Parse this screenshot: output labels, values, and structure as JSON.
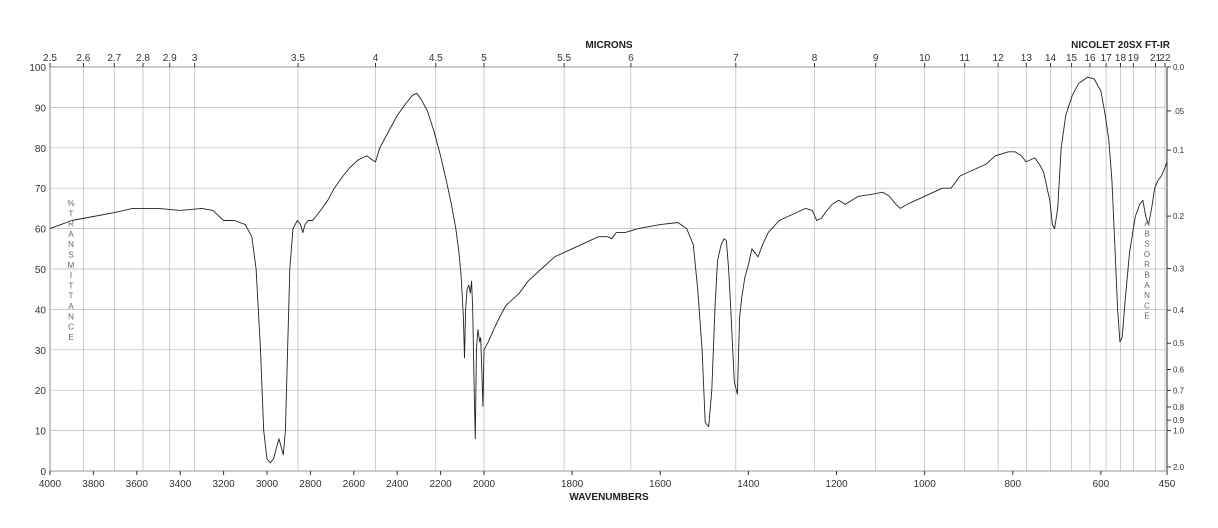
{
  "header": {
    "top_axis_label": "MICRONS",
    "instrument": "NICOLET 20SX FT-IR"
  },
  "chart_data": {
    "type": "line",
    "title": "",
    "xlabel": "WAVENUMBERS",
    "x2label": "MICRONS",
    "ylabel": "%TRANSMITTANCE",
    "y2label": "ABSORBANCE",
    "xlim": [
      4000,
      450
    ],
    "ylim": [
      0,
      100
    ],
    "x_axis_note": "wavenumber axis: linear 4000-2000 and 2000-450 with a scale change at 2000",
    "grid": true,
    "x_ticks": [
      "4000",
      "3800",
      "3600",
      "3400",
      "3200",
      "3000",
      "2800",
      "2600",
      "2400",
      "2200",
      "2000",
      "1800",
      "1600",
      "1400",
      "1200",
      "1000",
      "800",
      "600",
      "450"
    ],
    "y_ticks": [
      "0",
      "10",
      "20",
      "30",
      "40",
      "50",
      "60",
      "70",
      "80",
      "90",
      "100"
    ],
    "micron_ticks": [
      "2.5",
      "2.6",
      "2.7",
      "2.8",
      "2.9",
      "3",
      "3.5",
      "4",
      "4.5",
      "5",
      "5.5",
      "6",
      "7",
      "8",
      "9",
      "10",
      "11",
      "12",
      "13",
      "14",
      "15",
      "16",
      "17",
      "18",
      "19",
      "21",
      "22"
    ],
    "absorbance_ticks": [
      "0.0",
      ".05",
      "0.1",
      "0.2",
      "0.3",
      "0.4",
      "0.5",
      "0.6",
      "0.7",
      "0.8",
      "0.9",
      "1.0",
      "2.0"
    ],
    "series": [
      {
        "values": [
          [
            4000,
            60
          ],
          [
            3950,
            61
          ],
          [
            3900,
            62
          ],
          [
            3800,
            63
          ],
          [
            3700,
            64
          ],
          [
            3620,
            65
          ],
          [
            3500,
            65
          ],
          [
            3400,
            64.5
          ],
          [
            3300,
            65
          ],
          [
            3250,
            64.5
          ],
          [
            3200,
            62
          ],
          [
            3150,
            62
          ],
          [
            3100,
            61
          ],
          [
            3070,
            58
          ],
          [
            3050,
            50
          ],
          [
            3030,
            30
          ],
          [
            3015,
            10
          ],
          [
            3000,
            3
          ],
          [
            2985,
            2
          ],
          [
            2970,
            3
          ],
          [
            2955,
            6
          ],
          [
            2945,
            8
          ],
          [
            2935,
            6
          ],
          [
            2925,
            4
          ],
          [
            2915,
            10
          ],
          [
            2905,
            30
          ],
          [
            2895,
            50
          ],
          [
            2880,
            60
          ],
          [
            2860,
            62
          ],
          [
            2845,
            61
          ],
          [
            2835,
            59
          ],
          [
            2825,
            61
          ],
          [
            2810,
            62
          ],
          [
            2790,
            62
          ],
          [
            2760,
            64
          ],
          [
            2720,
            67
          ],
          [
            2690,
            70
          ],
          [
            2650,
            73
          ],
          [
            2620,
            75
          ],
          [
            2580,
            77
          ],
          [
            2540,
            78
          ],
          [
            2515,
            77
          ],
          [
            2500,
            76.5
          ],
          [
            2480,
            80
          ],
          [
            2440,
            84
          ],
          [
            2400,
            88
          ],
          [
            2360,
            91
          ],
          [
            2330,
            93
          ],
          [
            2310,
            93.5
          ],
          [
            2290,
            92
          ],
          [
            2260,
            89
          ],
          [
            2230,
            84
          ],
          [
            2200,
            78
          ],
          [
            2170,
            71
          ],
          [
            2150,
            66
          ],
          [
            2130,
            60
          ],
          [
            2115,
            54
          ],
          [
            2105,
            48
          ],
          [
            2095,
            38
          ],
          [
            2090,
            28
          ],
          [
            2085,
            40
          ],
          [
            2078,
            45
          ],
          [
            2070,
            46
          ],
          [
            2063,
            44
          ],
          [
            2057,
            47
          ],
          [
            2052,
            40
          ],
          [
            2045,
            20
          ],
          [
            2040,
            8
          ],
          [
            2035,
            30
          ],
          [
            2028,
            35
          ],
          [
            2020,
            32
          ],
          [
            2015,
            33
          ],
          [
            2010,
            25
          ],
          [
            2005,
            16
          ],
          [
            2000,
            30
          ],
          [
            1990,
            32
          ],
          [
            1978,
            35
          ],
          [
            1965,
            38
          ],
          [
            1950,
            41
          ],
          [
            1920,
            44
          ],
          [
            1900,
            47
          ],
          [
            1870,
            50
          ],
          [
            1840,
            53
          ],
          [
            1800,
            55
          ],
          [
            1780,
            56
          ],
          [
            1760,
            57
          ],
          [
            1740,
            58
          ],
          [
            1720,
            58
          ],
          [
            1710,
            57.5
          ],
          [
            1700,
            59
          ],
          [
            1680,
            59
          ],
          [
            1650,
            60
          ],
          [
            1600,
            61
          ],
          [
            1560,
            61.5
          ],
          [
            1540,
            60
          ],
          [
            1525,
            56
          ],
          [
            1515,
            45
          ],
          [
            1505,
            30
          ],
          [
            1498,
            12
          ],
          [
            1490,
            11
          ],
          [
            1483,
            20
          ],
          [
            1476,
            40
          ],
          [
            1470,
            52
          ],
          [
            1462,
            56
          ],
          [
            1455,
            57.5
          ],
          [
            1450,
            57
          ],
          [
            1445,
            50
          ],
          [
            1440,
            40
          ],
          [
            1432,
            22
          ],
          [
            1425,
            19
          ],
          [
            1420,
            38
          ],
          [
            1415,
            43
          ],
          [
            1408,
            48
          ],
          [
            1400,
            51
          ],
          [
            1392,
            55
          ],
          [
            1385,
            54
          ],
          [
            1378,
            53
          ],
          [
            1368,
            56
          ],
          [
            1355,
            59
          ],
          [
            1330,
            62
          ],
          [
            1310,
            63
          ],
          [
            1290,
            64
          ],
          [
            1270,
            65
          ],
          [
            1255,
            64.5
          ],
          [
            1245,
            62
          ],
          [
            1235,
            62.5
          ],
          [
            1225,
            64
          ],
          [
            1210,
            66
          ],
          [
            1195,
            67
          ],
          [
            1180,
            66
          ],
          [
            1165,
            67
          ],
          [
            1150,
            68
          ],
          [
            1120,
            68.5
          ],
          [
            1095,
            69
          ],
          [
            1080,
            68
          ],
          [
            1065,
            66
          ],
          [
            1055,
            65
          ],
          [
            1040,
            66
          ],
          [
            1020,
            67
          ],
          [
            1000,
            68
          ],
          [
            980,
            69
          ],
          [
            960,
            70
          ],
          [
            940,
            70
          ],
          [
            920,
            73
          ],
          [
            900,
            74
          ],
          [
            880,
            75
          ],
          [
            860,
            76
          ],
          [
            840,
            78
          ],
          [
            810,
            79
          ],
          [
            795,
            79
          ],
          [
            780,
            78
          ],
          [
            770,
            76.5
          ],
          [
            760,
            77
          ],
          [
            750,
            77.5
          ],
          [
            740,
            76
          ],
          [
            730,
            74
          ],
          [
            722,
            70
          ],
          [
            716,
            67
          ],
          [
            710,
            61
          ],
          [
            705,
            60
          ],
          [
            698,
            65
          ],
          [
            690,
            80
          ],
          [
            680,
            88
          ],
          [
            665,
            93
          ],
          [
            650,
            96
          ],
          [
            630,
            97.5
          ],
          [
            615,
            97
          ],
          [
            600,
            94
          ],
          [
            590,
            88
          ],
          [
            582,
            82
          ],
          [
            575,
            72
          ],
          [
            568,
            55
          ],
          [
            562,
            40
          ],
          [
            557,
            32
          ],
          [
            552,
            33
          ],
          [
            545,
            42
          ],
          [
            535,
            54
          ],
          [
            522,
            63
          ],
          [
            512,
            66
          ],
          [
            505,
            67
          ],
          [
            498,
            63
          ],
          [
            492,
            61
          ],
          [
            485,
            65
          ],
          [
            478,
            70
          ],
          [
            470,
            72
          ],
          [
            463,
            73
          ],
          [
            455,
            75
          ],
          [
            450,
            76.5
          ]
        ]
      }
    ]
  }
}
